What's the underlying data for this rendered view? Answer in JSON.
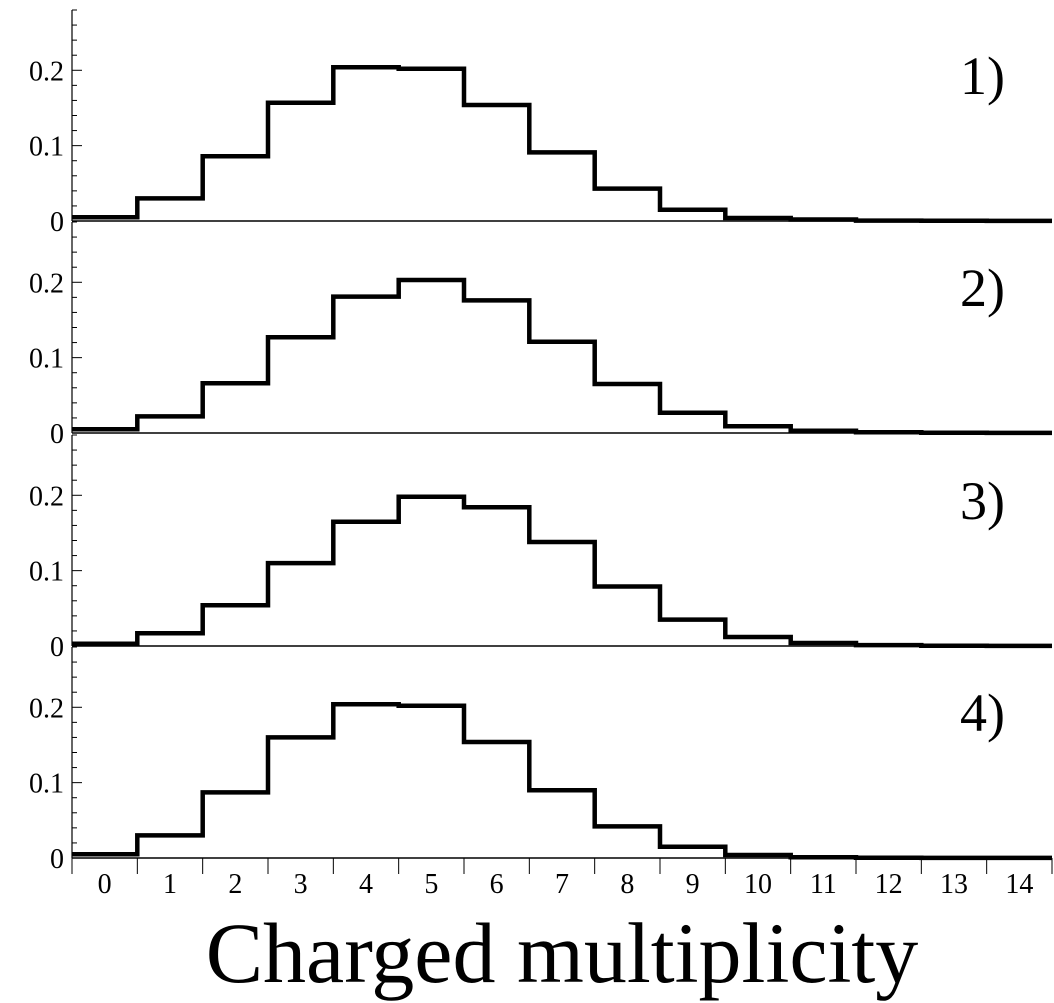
{
  "chart_data": {
    "type": "step",
    "xlabel": "Charged multiplicity",
    "x": [
      0,
      1,
      2,
      3,
      4,
      5,
      6,
      7,
      8,
      9,
      10,
      11,
      12,
      13,
      14
    ],
    "x_tick_labels": [
      "0",
      "1",
      "2",
      "3",
      "4",
      "5",
      "6",
      "7",
      "8",
      "9",
      "10",
      "11",
      "12",
      "13",
      "14"
    ],
    "ylim": [
      0,
      0.28
    ],
    "y_tick_labels": [
      "0",
      "0.1",
      "0.2"
    ],
    "y_ticks": [
      0,
      0.1,
      0.2
    ],
    "panels": [
      {
        "label": "1)",
        "values": [
          0.005,
          0.03,
          0.086,
          0.157,
          0.204,
          0.202,
          0.154,
          0.091,
          0.043,
          0.015,
          0.004,
          0.002,
          0.0005,
          0.0002,
          0.0001
        ]
      },
      {
        "label": "2)",
        "values": [
          0.005,
          0.022,
          0.066,
          0.127,
          0.181,
          0.203,
          0.176,
          0.121,
          0.065,
          0.027,
          0.009,
          0.003,
          0.001,
          0.0004,
          0.0001
        ]
      },
      {
        "label": "3)",
        "values": [
          0.003,
          0.017,
          0.054,
          0.11,
          0.165,
          0.198,
          0.184,
          0.138,
          0.079,
          0.035,
          0.012,
          0.004,
          0.0012,
          0.0004,
          0.0001
        ]
      },
      {
        "label": "4)",
        "values": [
          0.005,
          0.03,
          0.087,
          0.16,
          0.204,
          0.202,
          0.154,
          0.09,
          0.042,
          0.015,
          0.004,
          0.001,
          0.0003,
          0.0001,
          0.0001
        ]
      }
    ]
  }
}
